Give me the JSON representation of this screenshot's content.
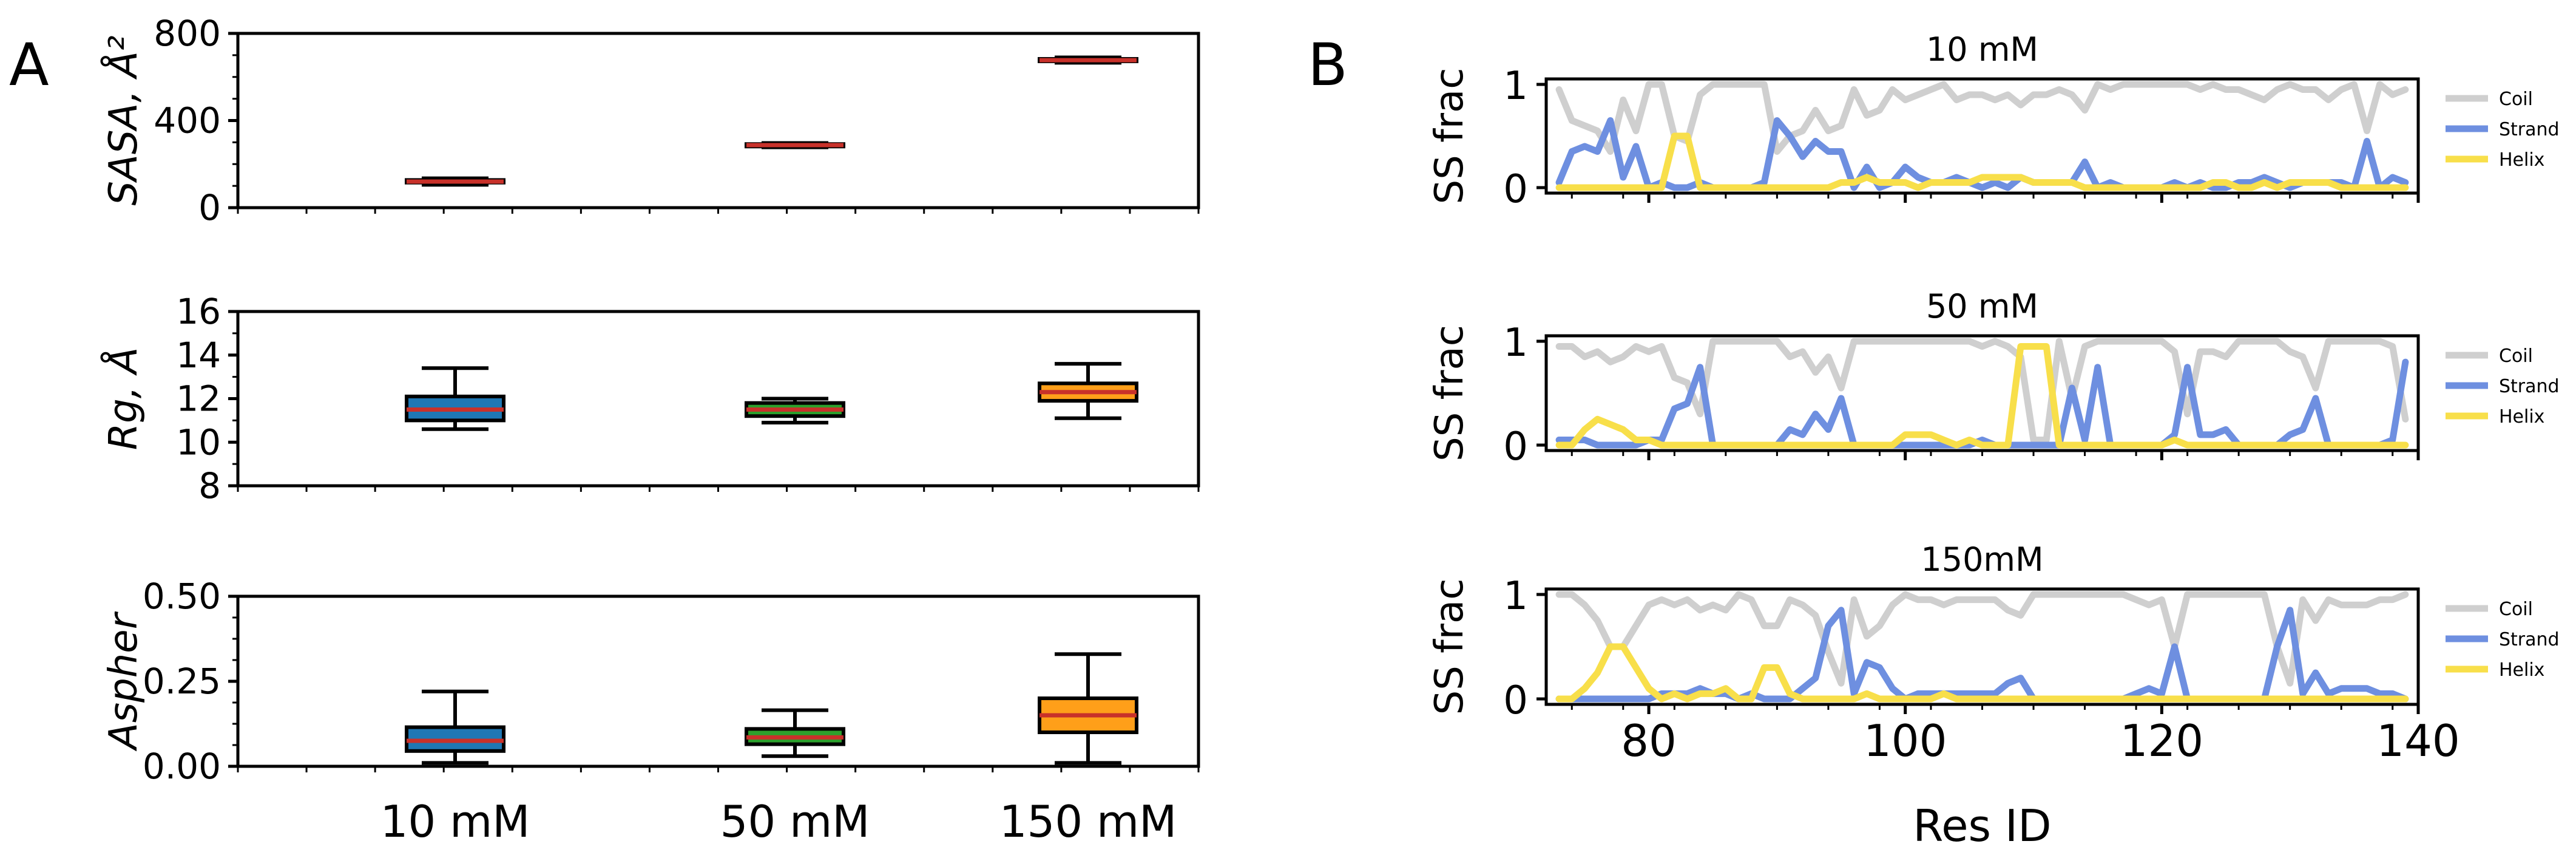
{
  "panels": {
    "left_label": "A",
    "right_label": "B"
  },
  "colors": {
    "red": "#C8312A",
    "blue": "#1F77B4",
    "green": "#2CA02C",
    "orange": "#FF9F19",
    "coil": "#CFCFCF",
    "strand": "#6E8FE0",
    "helix": "#F8DF4A"
  },
  "chart_data": [
    {
      "id": "sasa",
      "type": "box",
      "title": "",
      "categories": [
        "10 mM",
        "50 mM",
        "150 mM"
      ],
      "ylabel": "SASA, Å²",
      "ylim": [
        0,
        800
      ],
      "yticks": [
        {
          "v": 0,
          "label": "0"
        },
        {
          "v": 400,
          "label": "400"
        },
        {
          "v": 800,
          "label": "800"
        }
      ],
      "boxes": [
        {
          "category": "10 mM",
          "min": 105,
          "q1": 115,
          "median": 120,
          "q3": 127,
          "max": 135,
          "fill": "#C8312A"
        },
        {
          "category": "50 mM",
          "min": 277,
          "q1": 283,
          "median": 287,
          "q3": 292,
          "max": 297,
          "fill": "#C8312A"
        },
        {
          "category": "150 mM",
          "min": 665,
          "q1": 672,
          "median": 677,
          "q3": 683,
          "max": 690,
          "fill": "#C8312A"
        }
      ]
    },
    {
      "id": "rg",
      "type": "box",
      "title": "",
      "categories": [
        "10 mM",
        "50 mM",
        "150 mM"
      ],
      "ylabel": "Rg, Å",
      "ylim": [
        8,
        16
      ],
      "yticks": [
        {
          "v": 8,
          "label": "8"
        },
        {
          "v": 10,
          "label": "10"
        },
        {
          "v": 12,
          "label": "12"
        },
        {
          "v": 14,
          "label": "14"
        },
        {
          "v": 16,
          "label": "16"
        }
      ],
      "boxes": [
        {
          "category": "10 mM",
          "min": 10.6,
          "q1": 11.0,
          "median": 11.5,
          "q3": 12.1,
          "max": 13.4,
          "fill": "#1F77B4"
        },
        {
          "category": "50 mM",
          "min": 10.9,
          "q1": 11.2,
          "median": 11.5,
          "q3": 11.8,
          "max": 12.0,
          "fill": "#2CA02C"
        },
        {
          "category": "150 mM",
          "min": 11.1,
          "q1": 11.9,
          "median": 12.3,
          "q3": 12.7,
          "max": 13.6,
          "fill": "#FF9F19"
        }
      ]
    },
    {
      "id": "aspher",
      "type": "box",
      "title": "",
      "categories": [
        "10 mM",
        "50 mM",
        "150 mM"
      ],
      "ylabel": "Aspher",
      "ylim": [
        0,
        0.5
      ],
      "yticks": [
        {
          "v": 0,
          "label": "0.00"
        },
        {
          "v": 0.25,
          "label": "0.25"
        },
        {
          "v": 0.5,
          "label": "0.50"
        }
      ],
      "boxes": [
        {
          "category": "10 mM",
          "min": 0.01,
          "q1": 0.045,
          "median": 0.075,
          "q3": 0.115,
          "max": 0.22,
          "fill": "#1F77B4"
        },
        {
          "category": "50 mM",
          "min": 0.03,
          "q1": 0.065,
          "median": 0.085,
          "q3": 0.11,
          "max": 0.165,
          "fill": "#2CA02C"
        },
        {
          "category": "150 mM",
          "min": 0.01,
          "q1": 0.1,
          "median": 0.15,
          "q3": 0.2,
          "max": 0.33,
          "fill": "#FF9F19"
        }
      ]
    },
    {
      "id": "ss10",
      "type": "line",
      "title": "10 mM",
      "xlabel": "",
      "ylabel": "SS frac",
      "xlim": [
        72,
        140
      ],
      "ylim": [
        0,
        1
      ],
      "yticks": [
        {
          "v": 0,
          "label": "0"
        },
        {
          "v": 1,
          "label": "1"
        }
      ],
      "xticks": [
        {
          "v": 80,
          "label": "80"
        },
        {
          "v": 100,
          "label": "100"
        },
        {
          "v": 120,
          "label": "120"
        },
        {
          "v": 140,
          "label": "140"
        }
      ],
      "x": [
        73,
        74,
        75,
        76,
        77,
        78,
        79,
        80,
        81,
        82,
        83,
        84,
        85,
        86,
        87,
        88,
        89,
        90,
        91,
        92,
        93,
        94,
        95,
        96,
        97,
        98,
        99,
        100,
        101,
        102,
        103,
        104,
        105,
        106,
        107,
        108,
        109,
        110,
        111,
        112,
        113,
        114,
        115,
        116,
        117,
        118,
        119,
        120,
        121,
        122,
        123,
        124,
        125,
        126,
        127,
        128,
        129,
        130,
        131,
        132,
        133,
        134,
        135,
        136,
        137,
        138,
        139
      ],
      "series": [
        {
          "name": "Coil",
          "values": [
            0.95,
            0.65,
            0.6,
            0.55,
            0.35,
            0.85,
            0.55,
            1,
            1,
            0.5,
            0.45,
            0.9,
            1,
            1,
            1,
            1,
            1,
            0.35,
            0.5,
            0.55,
            0.75,
            0.55,
            0.6,
            0.95,
            0.7,
            0.75,
            0.95,
            0.85,
            0.9,
            0.95,
            1,
            0.85,
            0.9,
            0.9,
            0.85,
            0.9,
            0.8,
            0.9,
            0.9,
            0.95,
            0.9,
            0.75,
            1,
            0.95,
            1,
            1,
            1,
            1,
            1,
            1,
            0.95,
            1,
            0.95,
            0.95,
            0.9,
            0.85,
            0.95,
            1,
            0.95,
            0.95,
            0.85,
            0.95,
            1,
            0.55,
            1,
            0.9,
            0.95
          ]
        },
        {
          "name": "Strand",
          "values": [
            0.05,
            0.35,
            0.4,
            0.35,
            0.65,
            0.1,
            0.4,
            0,
            0.05,
            0,
            0,
            0.05,
            0,
            0,
            0,
            0,
            0.05,
            0.65,
            0.5,
            0.3,
            0.45,
            0.35,
            0.35,
            0,
            0.2,
            0,
            0.05,
            0.2,
            0.1,
            0.05,
            0.05,
            0.1,
            0.05,
            0,
            0.05,
            0,
            0.1,
            0.05,
            0.05,
            0.05,
            0.05,
            0.25,
            0,
            0.05,
            0,
            0,
            0,
            0,
            0.05,
            0,
            0.05,
            0,
            0,
            0.05,
            0.05,
            0.1,
            0.05,
            0,
            0.05,
            0.05,
            0.05,
            0.05,
            0,
            0.45,
            0,
            0.1,
            0.05
          ]
        },
        {
          "name": "Helix",
          "values": [
            0,
            0,
            0,
            0,
            0,
            0,
            0,
            0,
            0,
            0.5,
            0.5,
            0,
            0,
            0,
            0,
            0,
            0,
            0,
            0,
            0,
            0,
            0,
            0.05,
            0.05,
            0.1,
            0.05,
            0.05,
            0.05,
            0,
            0.05,
            0.05,
            0.05,
            0.05,
            0.1,
            0.1,
            0.1,
            0.1,
            0.05,
            0.05,
            0.05,
            0.05,
            0,
            0,
            0,
            0,
            0,
            0,
            0,
            0,
            0,
            0,
            0.05,
            0.05,
            0,
            0,
            0.05,
            0,
            0.05,
            0.05,
            0.05,
            0.05,
            0,
            0,
            0,
            0,
            0,
            0
          ]
        }
      ],
      "legend": {
        "position": "right",
        "entries": [
          "Coil",
          "Strand",
          "Helix"
        ]
      }
    },
    {
      "id": "ss50",
      "type": "line",
      "title": "50 mM",
      "xlabel": "",
      "ylabel": "SS frac",
      "xlim": [
        72,
        140
      ],
      "ylim": [
        0,
        1
      ],
      "yticks": [
        {
          "v": 0,
          "label": "0"
        },
        {
          "v": 1,
          "label": "1"
        }
      ],
      "xticks": [
        {
          "v": 80,
          "label": "80"
        },
        {
          "v": 100,
          "label": "100"
        },
        {
          "v": 120,
          "label": "120"
        },
        {
          "v": 140,
          "label": "140"
        }
      ],
      "x": [
        73,
        74,
        75,
        76,
        77,
        78,
        79,
        80,
        81,
        82,
        83,
        84,
        85,
        86,
        87,
        88,
        89,
        90,
        91,
        92,
        93,
        94,
        95,
        96,
        97,
        98,
        99,
        100,
        101,
        102,
        103,
        104,
        105,
        106,
        107,
        108,
        109,
        110,
        111,
        112,
        113,
        114,
        115,
        116,
        117,
        118,
        119,
        120,
        121,
        122,
        123,
        124,
        125,
        126,
        127,
        128,
        129,
        130,
        131,
        132,
        133,
        134,
        135,
        136,
        137,
        138,
        139
      ],
      "series": [
        {
          "name": "Coil",
          "values": [
            0.95,
            0.95,
            0.85,
            0.9,
            0.8,
            0.85,
            0.95,
            0.9,
            0.95,
            0.65,
            0.6,
            0.3,
            1,
            1,
            1,
            1,
            1,
            1,
            0.85,
            0.9,
            0.7,
            0.85,
            0.55,
            1,
            1,
            1,
            1,
            1,
            1,
            1,
            1,
            1,
            1,
            0.95,
            1,
            0.95,
            0.85,
            0.05,
            0.05,
            1,
            0.45,
            0.95,
            1,
            1,
            1,
            1,
            1,
            1,
            0.9,
            0.3,
            0.9,
            0.9,
            0.85,
            1,
            1,
            1,
            1,
            0.9,
            0.85,
            0.55,
            1,
            1,
            1,
            1,
            1,
            0.95,
            0.25
          ]
        },
        {
          "name": "Strand",
          "values": [
            0.05,
            0.05,
            0.05,
            0,
            0,
            0,
            0,
            0.05,
            0.05,
            0.35,
            0.4,
            0.75,
            0,
            0,
            0,
            0,
            0,
            0,
            0.15,
            0.1,
            0.3,
            0.15,
            0.45,
            0,
            0,
            0,
            0,
            0,
            0,
            0,
            0,
            0,
            0,
            0.05,
            0,
            0,
            0,
            0,
            0,
            0,
            0.55,
            0.05,
            0.75,
            0,
            0,
            0,
            0,
            0,
            0.1,
            0.75,
            0.1,
            0.1,
            0.15,
            0,
            0,
            0,
            0,
            0.1,
            0.15,
            0.45,
            0,
            0,
            0,
            0,
            0,
            0.05,
            0.8
          ]
        },
        {
          "name": "Helix",
          "values": [
            0,
            0,
            0.15,
            0.25,
            0.2,
            0.15,
            0.05,
            0.05,
            0,
            0,
            0,
            0,
            0,
            0,
            0,
            0,
            0,
            0,
            0,
            0,
            0,
            0,
            0,
            0,
            0,
            0,
            0,
            0.1,
            0.1,
            0.1,
            0.05,
            0,
            0.05,
            0,
            0,
            0,
            0.95,
            0.95,
            0.95,
            0,
            0,
            0,
            0,
            0,
            0,
            0,
            0,
            0,
            0.05,
            0,
            0,
            0,
            0,
            0,
            0,
            0,
            0,
            0,
            0,
            0,
            0,
            0,
            0,
            0,
            0,
            0,
            0
          ]
        }
      ],
      "legend": {
        "position": "right",
        "entries": [
          "Coil",
          "Strand",
          "Helix"
        ]
      }
    },
    {
      "id": "ss150",
      "type": "line",
      "title": "150mM",
      "xlabel": "Res ID",
      "ylabel": "SS frac",
      "xlim": [
        72,
        140
      ],
      "ylim": [
        0,
        1
      ],
      "yticks": [
        {
          "v": 0,
          "label": "0"
        },
        {
          "v": 1,
          "label": "1"
        }
      ],
      "xticks": [
        {
          "v": 80,
          "label": "80"
        },
        {
          "v": 100,
          "label": "100"
        },
        {
          "v": 120,
          "label": "120"
        },
        {
          "v": 140,
          "label": "140"
        }
      ],
      "x": [
        73,
        74,
        75,
        76,
        77,
        78,
        79,
        80,
        81,
        82,
        83,
        84,
        85,
        86,
        87,
        88,
        89,
        90,
        91,
        92,
        93,
        94,
        95,
        96,
        97,
        98,
        99,
        100,
        101,
        102,
        103,
        104,
        105,
        106,
        107,
        108,
        109,
        110,
        111,
        112,
        113,
        114,
        115,
        116,
        117,
        118,
        119,
        120,
        121,
        122,
        123,
        124,
        125,
        126,
        127,
        128,
        129,
        130,
        131,
        132,
        133,
        134,
        135,
        136,
        137,
        138,
        139
      ],
      "series": [
        {
          "name": "Coil",
          "values": [
            1,
            1,
            0.9,
            0.75,
            0.5,
            0.5,
            0.7,
            0.9,
            0.95,
            0.9,
            0.95,
            0.85,
            0.9,
            0.85,
            1,
            0.95,
            0.7,
            0.7,
            0.95,
            0.9,
            0.8,
            0.45,
            0.15,
            0.95,
            0.6,
            0.7,
            0.9,
            1,
            0.95,
            0.95,
            0.9,
            0.95,
            0.95,
            0.95,
            0.95,
            0.85,
            0.8,
            1,
            1,
            1,
            1,
            1,
            1,
            1,
            1,
            0.95,
            0.9,
            0.95,
            0.5,
            1,
            1,
            1,
            1,
            1,
            1,
            1,
            0.5,
            0.15,
            0.95,
            0.75,
            0.95,
            0.9,
            0.9,
            0.9,
            0.95,
            0.95,
            1
          ]
        },
        {
          "name": "Strand",
          "values": [
            0,
            0,
            0,
            0,
            0,
            0,
            0,
            0,
            0.05,
            0.05,
            0.05,
            0.1,
            0.05,
            0.05,
            0,
            0.05,
            0,
            0,
            0,
            0.1,
            0.2,
            0.7,
            0.85,
            0.05,
            0.35,
            0.3,
            0.1,
            0,
            0.05,
            0.05,
            0.05,
            0.05,
            0.05,
            0.05,
            0.05,
            0.15,
            0.2,
            0,
            0,
            0,
            0,
            0,
            0,
            0,
            0,
            0.05,
            0.1,
            0.05,
            0.5,
            0,
            0,
            0,
            0,
            0,
            0,
            0,
            0.5,
            0.85,
            0.05,
            0.25,
            0.05,
            0.1,
            0.1,
            0.1,
            0.05,
            0.05,
            0
          ]
        },
        {
          "name": "Helix",
          "values": [
            0,
            0,
            0.1,
            0.25,
            0.5,
            0.5,
            0.3,
            0.1,
            0,
            0.05,
            0,
            0.05,
            0.05,
            0.1,
            0,
            0,
            0.3,
            0.3,
            0.05,
            0,
            0,
            0,
            0,
            0,
            0.05,
            0,
            0,
            0,
            0,
            0,
            0.05,
            0,
            0,
            0,
            0,
            0,
            0,
            0,
            0,
            0,
            0,
            0,
            0,
            0,
            0,
            0,
            0,
            0,
            0,
            0,
            0,
            0,
            0,
            0,
            0,
            0,
            0,
            0,
            0,
            0,
            0,
            0,
            0,
            0,
            0,
            0,
            0
          ]
        }
      ],
      "legend": {
        "position": "right",
        "entries": [
          "Coil",
          "Strand",
          "Helix"
        ]
      }
    }
  ]
}
